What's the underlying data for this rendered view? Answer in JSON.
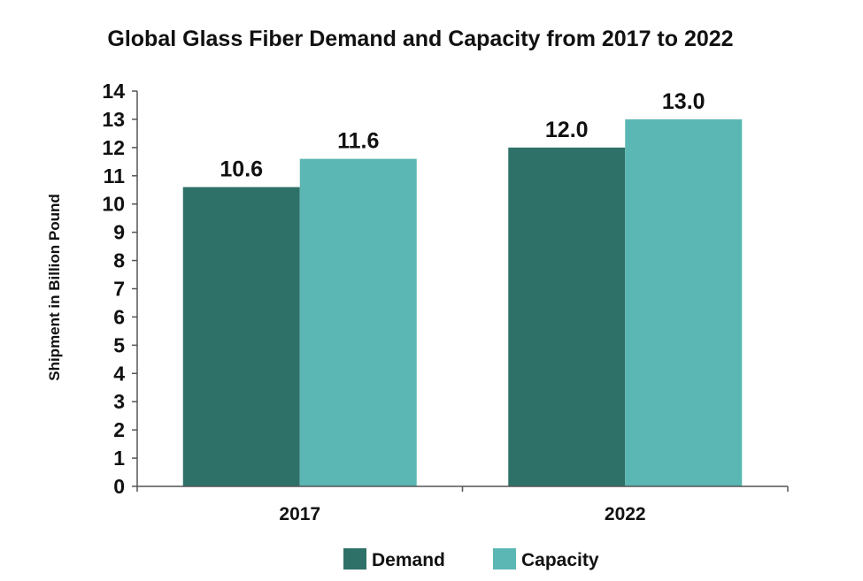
{
  "chart_data": {
    "type": "bar",
    "title": "Global Glass Fiber Demand and Capacity from 2017 to 2022",
    "xlabel": "",
    "ylabel": "Shipment in Billion Pound",
    "categories": [
      "2017",
      "2022"
    ],
    "series": [
      {
        "name": "Demand",
        "values": [
          10.6,
          12.0
        ],
        "labels": [
          "10.6",
          "12.0"
        ],
        "color": "#2e7169"
      },
      {
        "name": "Capacity",
        "values": [
          11.6,
          13.0
        ],
        "labels": [
          "11.6",
          "13.0"
        ],
        "color": "#5ab7b3"
      }
    ],
    "ylim": [
      0,
      14
    ],
    "yticks": [
      "0",
      "1",
      "2",
      "3",
      "4",
      "5",
      "6",
      "7",
      "8",
      "9",
      "10",
      "11",
      "12",
      "13",
      "14"
    ],
    "grid": false,
    "legend_position": "bottom"
  }
}
